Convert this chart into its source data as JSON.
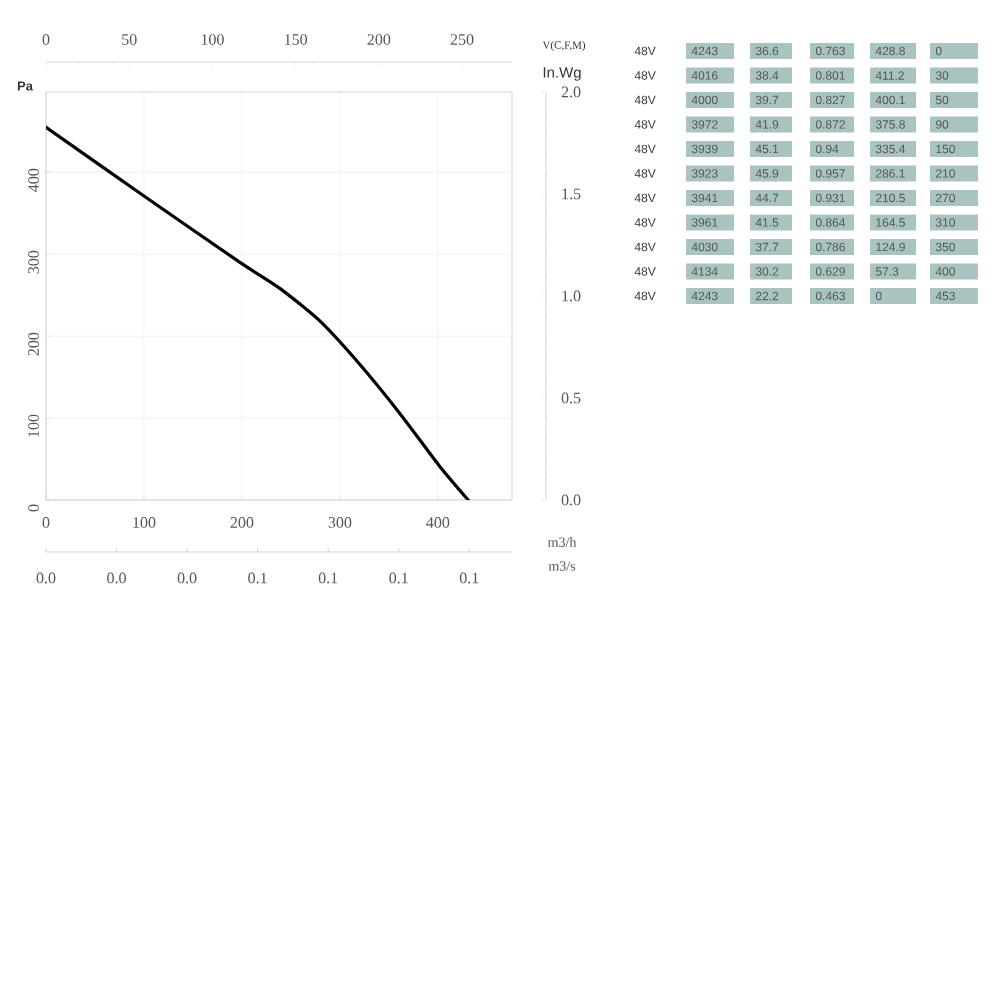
{
  "chart_data": [
    {
      "type": "line",
      "xlabel": "m3/h",
      "ylabel": "Pa",
      "x2label": "V(C,F,M)",
      "y2label": "In.Wg",
      "x": [
        0,
        100,
        198,
        239,
        280,
        320,
        361,
        402,
        431
      ],
      "values": [
        455,
        371,
        290,
        258,
        218,
        166,
        106,
        41,
        0
      ],
      "color": "#000000",
      "xlim": [
        0,
        475.7
      ],
      "xticks": [
        0,
        100,
        200,
        300,
        400
      ],
      "ylim": [
        0,
        498
      ],
      "yticks": [
        0,
        100,
        200,
        300,
        400
      ],
      "x2lim": [
        0,
        280
      ],
      "x2ticks": [
        0,
        50,
        100,
        150,
        200,
        250
      ],
      "y2lim": [
        0,
        2
      ],
      "y2ticks": [
        {
          "value": 0,
          "label": "0.0"
        },
        0.5,
        {
          "value": 1,
          "label": "1.0"
        },
        1.5,
        {
          "value": 2,
          "label": "2.0"
        }
      ],
      "annotations": [
        "m3/s",
        "0.0",
        "0.0",
        "0.0",
        "0.1",
        "0.1",
        "0.1",
        "0.1"
      ],
      "grid": true
    },
    {
      "type": "other",
      "annotations": [
        "48V",
        "4243",
        "36.6",
        "0.763",
        "428.8",
        "0",
        "48V",
        "4016",
        "38.4",
        "0.801",
        "411.2",
        "30",
        "48V",
        "4000",
        "39.7",
        "0.827",
        "400.1",
        "50",
        "48V",
        "3972",
        "41.9",
        "0.872",
        "375.8",
        "90",
        "48V",
        "3939",
        "45.1",
        "0.94",
        "335.4",
        "150",
        "48V",
        "3923",
        "45.9",
        "0.957",
        "286.1",
        "210",
        "48V",
        "3941",
        "44.7",
        "0.931",
        "210.5",
        "270",
        "48V",
        "3961",
        "41.5",
        "0.864",
        "164.5",
        "310",
        "48V",
        "4030",
        "37.7",
        "0.786",
        "124.9",
        "350",
        "48V",
        "4134",
        "30.2",
        "0.629",
        "57.3",
        "400",
        "48V",
        "4243",
        "22.2",
        "0.463",
        "0",
        "453"
      ]
    }
  ]
}
